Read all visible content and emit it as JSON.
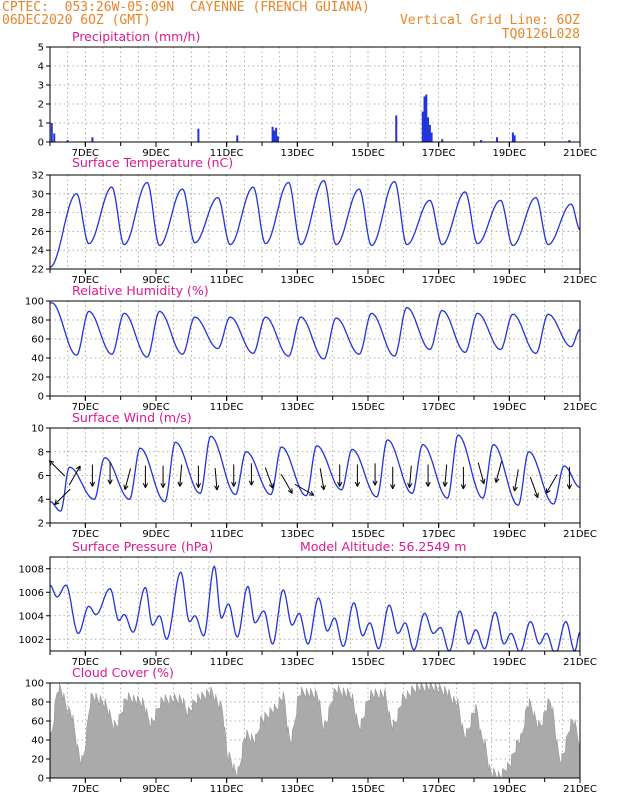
{
  "header": {
    "line1_left": "CPTEC:  053:26W-05:09N  CAYENNE (FRENCH GUIANA)",
    "line2_left": "06DEC2020 6OZ (GMT)",
    "line2_right": "Vertical Grid Line: 6OZ",
    "line3_right": "TQ0126L028"
  },
  "colors": {
    "header": "#e8852a",
    "title": "#e0188f",
    "line": "#2233dd",
    "area": "#aaaaaa",
    "wind_arrow": "#000000"
  },
  "chart_data": [
    {
      "type": "bar",
      "title": "Precipitation (mm/h)",
      "ylim": [
        0,
        5
      ],
      "yticks": [
        0,
        1,
        2,
        3,
        4,
        5
      ],
      "xtick_labels": [
        "7DEC",
        "9DEC",
        "11DEC",
        "13DEC",
        "15DEC",
        "17DEC",
        "19DEC",
        "21DEC"
      ],
      "xlim_days": [
        6.0,
        21.0
      ],
      "bars": [
        [
          6.05,
          1.0
        ],
        [
          6.12,
          0.45
        ],
        [
          6.5,
          0.1
        ],
        [
          7.2,
          0.25
        ],
        [
          10.2,
          0.7
        ],
        [
          11.3,
          0.35
        ],
        [
          12.3,
          0.8
        ],
        [
          12.35,
          0.6
        ],
        [
          12.4,
          0.75
        ],
        [
          12.45,
          0.3
        ],
        [
          15.8,
          1.4
        ],
        [
          16.55,
          1.6
        ],
        [
          16.6,
          2.4
        ],
        [
          16.65,
          2.5
        ],
        [
          16.7,
          1.3
        ],
        [
          16.75,
          0.9
        ],
        [
          16.8,
          0.5
        ],
        [
          17.1,
          0.15
        ],
        [
          18.2,
          0.1
        ],
        [
          18.65,
          0.25
        ],
        [
          19.1,
          0.5
        ],
        [
          19.15,
          0.35
        ],
        [
          20.7,
          0.1
        ]
      ]
    },
    {
      "type": "line",
      "title": "Surface Temperature (nC)",
      "ylim": [
        22,
        32
      ],
      "yticks": [
        22,
        24,
        26,
        28,
        30,
        32
      ],
      "xtick_labels": [
        "7DEC",
        "9DEC",
        "11DEC",
        "13DEC",
        "15DEC",
        "17DEC",
        "19DEC",
        "21DEC"
      ],
      "xlim_days": [
        6.0,
        21.0
      ],
      "start": {
        "day": 6.0,
        "value": 22.2
      },
      "daily": [
        {
          "peak_day": 6.75,
          "max": 30.0,
          "trough_day": 7.1,
          "min": 24.7
        },
        {
          "peak_day": 7.75,
          "max": 30.7,
          "trough_day": 8.1,
          "min": 24.6
        },
        {
          "peak_day": 8.75,
          "max": 31.2,
          "trough_day": 9.1,
          "min": 24.5
        },
        {
          "peak_day": 9.75,
          "max": 30.5,
          "trough_day": 10.1,
          "min": 24.8
        },
        {
          "peak_day": 10.75,
          "max": 29.6,
          "trough_day": 11.1,
          "min": 24.6
        },
        {
          "peak_day": 11.75,
          "max": 30.7,
          "trough_day": 12.1,
          "min": 24.7
        },
        {
          "peak_day": 12.75,
          "max": 31.2,
          "trough_day": 13.1,
          "min": 24.6
        },
        {
          "peak_day": 13.75,
          "max": 31.4,
          "trough_day": 14.1,
          "min": 24.6
        },
        {
          "peak_day": 14.75,
          "max": 30.5,
          "trough_day": 15.1,
          "min": 24.5
        },
        {
          "peak_day": 15.75,
          "max": 31.3,
          "trough_day": 16.1,
          "min": 24.6
        },
        {
          "peak_day": 16.75,
          "max": 29.3,
          "trough_day": 17.1,
          "min": 24.6
        },
        {
          "peak_day": 17.75,
          "max": 30.2,
          "trough_day": 18.1,
          "min": 24.7
        },
        {
          "peak_day": 18.75,
          "max": 29.3,
          "trough_day": 19.1,
          "min": 24.5
        },
        {
          "peak_day": 19.75,
          "max": 29.6,
          "trough_day": 20.1,
          "min": 24.6
        },
        {
          "peak_day": 20.75,
          "max": 28.9,
          "trough_day": 21.0,
          "min": 26.2
        }
      ]
    },
    {
      "type": "line",
      "title": "Relative Humidity (%)",
      "ylim": [
        0,
        100
      ],
      "yticks": [
        0,
        20,
        40,
        60,
        80,
        100
      ],
      "xtick_labels": [
        "7DEC",
        "9DEC",
        "11DEC",
        "13DEC",
        "15DEC",
        "17DEC",
        "19DEC",
        "21DEC"
      ],
      "xlim_days": [
        6.0,
        21.0
      ],
      "start": {
        "day": 6.0,
        "value": 98
      },
      "daily": [
        {
          "peak_day": 6.05,
          "max": 98,
          "trough_day": 6.75,
          "min": 43
        },
        {
          "peak_day": 7.1,
          "max": 89,
          "trough_day": 7.75,
          "min": 44
        },
        {
          "peak_day": 8.1,
          "max": 87,
          "trough_day": 8.75,
          "min": 41
        },
        {
          "peak_day": 9.1,
          "max": 89,
          "trough_day": 9.75,
          "min": 44
        },
        {
          "peak_day": 10.1,
          "max": 83,
          "trough_day": 10.75,
          "min": 50
        },
        {
          "peak_day": 11.1,
          "max": 83,
          "trough_day": 11.75,
          "min": 45
        },
        {
          "peak_day": 12.1,
          "max": 83,
          "trough_day": 12.75,
          "min": 42
        },
        {
          "peak_day": 13.1,
          "max": 83,
          "trough_day": 13.75,
          "min": 39
        },
        {
          "peak_day": 14.1,
          "max": 82,
          "trough_day": 14.75,
          "min": 44
        },
        {
          "peak_day": 15.1,
          "max": 87,
          "trough_day": 15.75,
          "min": 42
        },
        {
          "peak_day": 16.1,
          "max": 93,
          "trough_day": 16.75,
          "min": 49
        },
        {
          "peak_day": 17.1,
          "max": 90,
          "trough_day": 17.75,
          "min": 46
        },
        {
          "peak_day": 18.1,
          "max": 87,
          "trough_day": 18.75,
          "min": 49
        },
        {
          "peak_day": 19.1,
          "max": 86,
          "trough_day": 19.75,
          "min": 45
        },
        {
          "peak_day": 20.1,
          "max": 86,
          "trough_day": 20.75,
          "min": 52
        }
      ],
      "end": {
        "day": 21.0,
        "value": 70
      }
    },
    {
      "type": "line",
      "title": "Surface Wind (m/s)",
      "ylim": [
        2,
        10
      ],
      "yticks": [
        2,
        4,
        6,
        8,
        10
      ],
      "xtick_labels": [
        "7DEC",
        "9DEC",
        "11DEC",
        "13DEC",
        "15DEC",
        "17DEC",
        "19DEC",
        "21DEC"
      ],
      "xlim_days": [
        6.0,
        21.0
      ],
      "start": {
        "day": 6.0,
        "value": 3.8
      },
      "daily": [
        {
          "peak_day": 6.55,
          "max": 6.7,
          "trough_day": 6.3,
          "min": 3.0
        },
        {
          "peak_day": 7.55,
          "max": 7.5,
          "trough_day": 7.25,
          "min": 4.0
        },
        {
          "peak_day": 8.55,
          "max": 8.3,
          "trough_day": 8.25,
          "min": 4.0
        },
        {
          "peak_day": 9.55,
          "max": 8.8,
          "trough_day": 9.25,
          "min": 3.8
        },
        {
          "peak_day": 10.55,
          "max": 9.3,
          "trough_day": 10.25,
          "min": 4.5
        },
        {
          "peak_day": 11.55,
          "max": 8.0,
          "trough_day": 11.25,
          "min": 4.4
        },
        {
          "peak_day": 12.55,
          "max": 8.4,
          "trough_day": 12.25,
          "min": 4.4
        },
        {
          "peak_day": 13.55,
          "max": 8.5,
          "trough_day": 13.25,
          "min": 4.3
        },
        {
          "peak_day": 14.55,
          "max": 8.2,
          "trough_day": 14.25,
          "min": 4.8
        },
        {
          "peak_day": 15.55,
          "max": 9.0,
          "trough_day": 15.25,
          "min": 4.2
        },
        {
          "peak_day": 16.55,
          "max": 8.6,
          "trough_day": 16.25,
          "min": 4.5
        },
        {
          "peak_day": 17.55,
          "max": 9.4,
          "trough_day": 17.25,
          "min": 4.1
        },
        {
          "peak_day": 18.55,
          "max": 8.6,
          "trough_day": 18.25,
          "min": 4.1
        },
        {
          "peak_day": 19.55,
          "max": 8.0,
          "trough_day": 19.25,
          "min": 3.5
        },
        {
          "peak_day": 20.55,
          "max": 6.8,
          "trough_day": 20.25,
          "min": 3.6
        }
      ],
      "end": {
        "day": 21.0,
        "value": 5.0
      },
      "wind_arrows": [
        {
          "day": 6.2,
          "speed": 6.6,
          "dir_deg": 135
        },
        {
          "day": 6.35,
          "speed": 4.2,
          "dir_deg": 225
        },
        {
          "day": 6.7,
          "speed": 6.0,
          "dir_deg": 60
        },
        {
          "day": 7.2,
          "speed": 6.0,
          "dir_deg": 270
        },
        {
          "day": 7.7,
          "speed": 6.2,
          "dir_deg": 270
        },
        {
          "day": 8.2,
          "speed": 5.7,
          "dir_deg": 255
        },
        {
          "day": 8.7,
          "speed": 5.9,
          "dir_deg": 270
        },
        {
          "day": 9.2,
          "speed": 5.9,
          "dir_deg": 270
        },
        {
          "day": 9.7,
          "speed": 6.0,
          "dir_deg": 265
        },
        {
          "day": 10.2,
          "speed": 5.9,
          "dir_deg": 270
        },
        {
          "day": 10.7,
          "speed": 5.7,
          "dir_deg": 275
        },
        {
          "day": 11.2,
          "speed": 6.0,
          "dir_deg": 270
        },
        {
          "day": 11.7,
          "speed": 6.1,
          "dir_deg": 270
        },
        {
          "day": 12.2,
          "speed": 5.8,
          "dir_deg": 290
        },
        {
          "day": 12.7,
          "speed": 5.3,
          "dir_deg": 300
        },
        {
          "day": 13.2,
          "speed": 4.8,
          "dir_deg": 330
        },
        {
          "day": 13.7,
          "speed": 5.7,
          "dir_deg": 280
        },
        {
          "day": 14.2,
          "speed": 6.0,
          "dir_deg": 270
        },
        {
          "day": 14.7,
          "speed": 6.0,
          "dir_deg": 270
        },
        {
          "day": 15.2,
          "speed": 6.1,
          "dir_deg": 270
        },
        {
          "day": 15.7,
          "speed": 5.8,
          "dir_deg": 270
        },
        {
          "day": 16.2,
          "speed": 5.9,
          "dir_deg": 265
        },
        {
          "day": 16.7,
          "speed": 6.0,
          "dir_deg": 270
        },
        {
          "day": 17.2,
          "speed": 6.0,
          "dir_deg": 265
        },
        {
          "day": 17.7,
          "speed": 5.8,
          "dir_deg": 270
        },
        {
          "day": 18.2,
          "speed": 6.2,
          "dir_deg": 285
        },
        {
          "day": 18.7,
          "speed": 6.3,
          "dir_deg": 255
        },
        {
          "day": 19.2,
          "speed": 5.6,
          "dir_deg": 260
        },
        {
          "day": 19.7,
          "speed": 5.0,
          "dir_deg": 290
        },
        {
          "day": 20.2,
          "speed": 5.3,
          "dir_deg": 240
        },
        {
          "day": 20.7,
          "speed": 5.8,
          "dir_deg": 270
        }
      ]
    },
    {
      "type": "line",
      "title": "Surface Pressure (hPa)",
      "subtitle": "Model Altitude: 56.2549 m",
      "ylim": [
        1001,
        1009
      ],
      "yticks": [
        1002,
        1004,
        1006,
        1008
      ],
      "xtick_labels": [
        "7DEC",
        "9DEC",
        "11DEC",
        "13DEC",
        "15DEC",
        "17DEC",
        "19DEC",
        "21DEC"
      ],
      "xlim_days": [
        6.0,
        21.0
      ],
      "start": {
        "day": 6.0,
        "value": 1006.6
      },
      "extrema": [
        [
          6.2,
          1005.6
        ],
        [
          6.45,
          1006.6
        ],
        [
          6.8,
          1002.5
        ],
        [
          7.1,
          1004.8
        ],
        [
          7.3,
          1004.1
        ],
        [
          7.7,
          1006.3
        ],
        [
          7.95,
          1003.6
        ],
        [
          8.1,
          1004.1
        ],
        [
          8.35,
          1002.6
        ],
        [
          8.7,
          1006.4
        ],
        [
          8.9,
          1003.2
        ],
        [
          9.1,
          1004.0
        ],
        [
          9.3,
          1002.0
        ],
        [
          9.7,
          1007.7
        ],
        [
          9.95,
          1003.5
        ],
        [
          10.1,
          1004.0
        ],
        [
          10.35,
          1002.3
        ],
        [
          10.65,
          1008.2
        ],
        [
          10.85,
          1003.8
        ],
        [
          11.05,
          1005.0
        ],
        [
          11.3,
          1002.2
        ],
        [
          11.6,
          1006.5
        ],
        [
          11.8,
          1003.4
        ],
        [
          12.05,
          1004.4
        ],
        [
          12.3,
          1001.6
        ],
        [
          12.6,
          1006.2
        ],
        [
          12.85,
          1003.2
        ],
        [
          13.05,
          1004.2
        ],
        [
          13.3,
          1001.6
        ],
        [
          13.6,
          1005.5
        ],
        [
          13.85,
          1002.7
        ],
        [
          14.05,
          1003.8
        ],
        [
          14.3,
          1001.4
        ],
        [
          14.6,
          1005.1
        ],
        [
          14.85,
          1002.3
        ],
        [
          15.05,
          1003.4
        ],
        [
          15.3,
          1001.2
        ],
        [
          15.6,
          1004.9
        ],
        [
          15.85,
          1002.5
        ],
        [
          16.05,
          1003.4
        ],
        [
          16.3,
          1001.1
        ],
        [
          16.6,
          1004.2
        ],
        [
          16.85,
          1002.5
        ],
        [
          17.05,
          1003.0
        ],
        [
          17.3,
          1001.0
        ],
        [
          17.6,
          1004.4
        ],
        [
          17.85,
          1001.6
        ],
        [
          18.05,
          1002.8
        ],
        [
          18.3,
          1001.2
        ],
        [
          18.6,
          1004.3
        ],
        [
          18.85,
          1001.6
        ],
        [
          19.05,
          1002.5
        ],
        [
          19.3,
          1000.9
        ],
        [
          19.6,
          1003.5
        ],
        [
          19.85,
          1001.6
        ],
        [
          20.05,
          1002.5
        ],
        [
          20.3,
          1000.7
        ],
        [
          20.6,
          1003.5
        ],
        [
          20.85,
          1001.0
        ],
        [
          21.0,
          1002.6
        ]
      ]
    },
    {
      "type": "area",
      "title": "Cloud Cover (%)",
      "ylim": [
        0,
        100
      ],
      "yticks": [
        0,
        20,
        40,
        60,
        80,
        100
      ],
      "xtick_labels": [
        "7DEC",
        "9DEC",
        "11DEC",
        "13DEC",
        "15DEC",
        "17DEC",
        "19DEC",
        "21DEC"
      ],
      "xlim_days": [
        6.0,
        21.0
      ],
      "segments": [
        [
          6.0,
          42
        ],
        [
          6.25,
          95
        ],
        [
          6.55,
          70
        ],
        [
          6.9,
          18
        ],
        [
          7.2,
          86
        ],
        [
          7.5,
          80
        ],
        [
          7.85,
          55
        ],
        [
          8.2,
          84
        ],
        [
          8.6,
          80
        ],
        [
          8.85,
          58
        ],
        [
          9.2,
          82
        ],
        [
          9.7,
          83
        ],
        [
          9.9,
          70
        ],
        [
          10.2,
          84
        ],
        [
          10.55,
          90
        ],
        [
          10.85,
          75
        ],
        [
          11.05,
          22
        ],
        [
          11.3,
          5
        ],
        [
          11.55,
          45
        ],
        [
          11.8,
          40
        ],
        [
          12.0,
          62
        ],
        [
          12.35,
          72
        ],
        [
          12.6,
          85
        ],
        [
          12.8,
          40
        ],
        [
          13.1,
          90
        ],
        [
          13.55,
          88
        ],
        [
          13.75,
          55
        ],
        [
          14.1,
          92
        ],
        [
          14.5,
          88
        ],
        [
          14.75,
          55
        ],
        [
          15.1,
          88
        ],
        [
          15.45,
          88
        ],
        [
          15.7,
          55
        ],
        [
          16.05,
          86
        ],
        [
          16.4,
          95
        ],
        [
          16.8,
          96
        ],
        [
          17.15,
          92
        ],
        [
          17.5,
          80
        ],
        [
          17.75,
          45
        ],
        [
          18.05,
          72
        ],
        [
          18.25,
          40
        ],
        [
          18.5,
          5
        ],
        [
          18.75,
          2
        ],
        [
          18.95,
          12
        ],
        [
          19.3,
          40
        ],
        [
          19.55,
          78
        ],
        [
          19.85,
          55
        ],
        [
          20.15,
          80
        ],
        [
          20.45,
          20
        ],
        [
          20.8,
          60
        ],
        [
          21.0,
          38
        ]
      ]
    }
  ]
}
